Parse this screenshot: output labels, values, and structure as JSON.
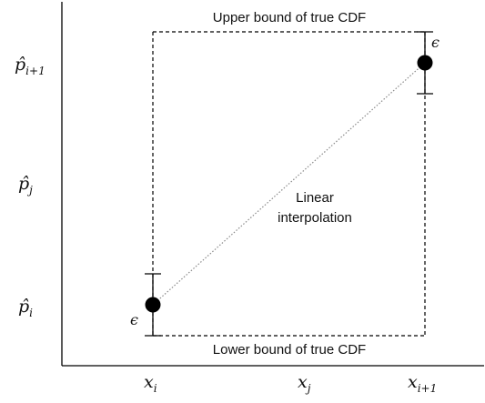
{
  "labels": {
    "upper_bound": "Upper bound of true CDF",
    "lower_bound": "Lower bound of true CDF",
    "interp_line1": "Linear",
    "interp_line2": "interpolation",
    "epsilon": "ϵ"
  },
  "y_axis": {
    "p_i1": {
      "base": "p̂",
      "sub": "i+1"
    },
    "p_j": {
      "base": "p̂",
      "sub": "j"
    },
    "p_i": {
      "base": "p̂",
      "sub": "i"
    }
  },
  "x_axis": {
    "x_i": {
      "base": "x",
      "sub": "i"
    },
    "x_j": {
      "base": "x",
      "sub": "j"
    },
    "x_i1": {
      "base": "x",
      "sub": "i+1"
    }
  },
  "colors": {
    "ink": "#000000",
    "interp_line": "#8a8a8a"
  }
}
